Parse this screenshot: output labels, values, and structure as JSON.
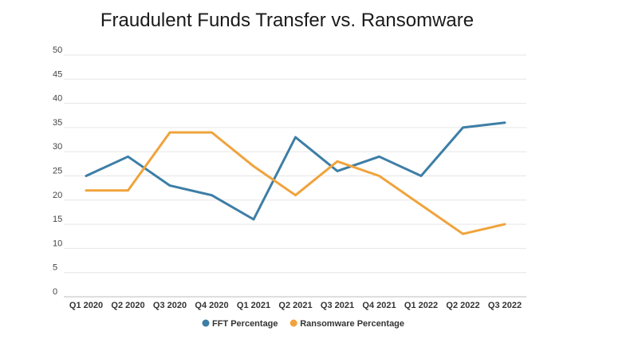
{
  "chart_data": {
    "type": "line",
    "title": "Fraudulent Funds Transfer vs. Ransomware",
    "xlabel": "",
    "ylabel": "",
    "categories": [
      "Q1 2020",
      "Q2 2020",
      "Q3 2020",
      "Q4 2020",
      "Q1 2021",
      "Q2 2021",
      "Q3 2021",
      "Q4 2021",
      "Q1 2022",
      "Q2 2022",
      "Q3 2022"
    ],
    "ylim": [
      0,
      50
    ],
    "yticks": [
      0,
      5,
      10,
      15,
      20,
      25,
      30,
      35,
      40,
      45,
      50
    ],
    "grid": true,
    "legend": "bottom",
    "series": [
      {
        "name": "FFT Percentage",
        "color": "#3d7ea6",
        "values": [
          25,
          29,
          23,
          21,
          16,
          33,
          26,
          29,
          25,
          35,
          36
        ]
      },
      {
        "name": "Ransomware Percentage",
        "color": "#f0a33c",
        "values": [
          22,
          22,
          34,
          34,
          27,
          21,
          28,
          25,
          19,
          13,
          15
        ]
      }
    ]
  }
}
